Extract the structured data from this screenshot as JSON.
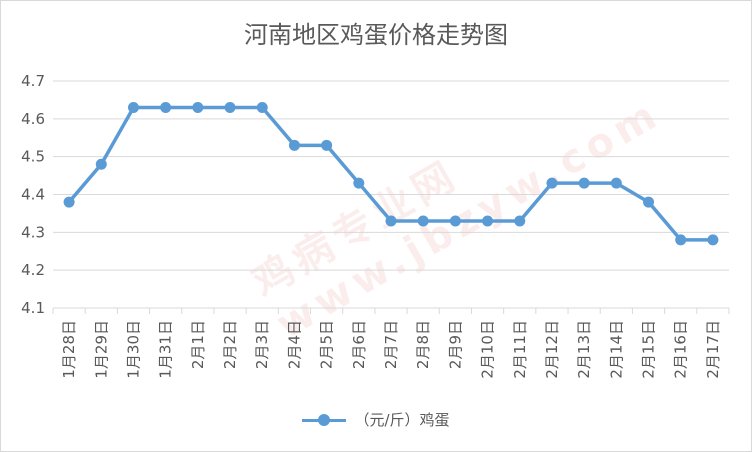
{
  "chart_data": {
    "type": "line",
    "title": "河南地区鸡蛋价格走势图",
    "xlabel": "",
    "ylabel": "",
    "ylim": [
      4.1,
      4.7
    ],
    "yticks": [
      "4.1",
      "4.2",
      "4.3",
      "4.4",
      "4.5",
      "4.6",
      "4.7"
    ],
    "grid": true,
    "legend_position": "bottom",
    "categories": [
      "1月28日",
      "1月29日",
      "1月30日",
      "1月31日",
      "2月1日",
      "2月2日",
      "2月3日",
      "2月4日",
      "2月5日",
      "2月6日",
      "2月7日",
      "2月8日",
      "2月9日",
      "2月10日",
      "2月11日",
      "2月12日",
      "2月13日",
      "2月14日",
      "2月15日",
      "2月16日",
      "2月17日"
    ],
    "series": [
      {
        "name": "（元/斤）鸡蛋",
        "color": "#5b9bd5",
        "values": [
          4.38,
          4.48,
          4.63,
          4.63,
          4.63,
          4.63,
          4.63,
          4.53,
          4.53,
          4.43,
          4.33,
          4.33,
          4.33,
          4.33,
          4.33,
          4.43,
          4.43,
          4.43,
          4.38,
          4.28,
          4.28
        ]
      }
    ]
  },
  "watermark": "鸡病专业网 www.jbzyw.com"
}
